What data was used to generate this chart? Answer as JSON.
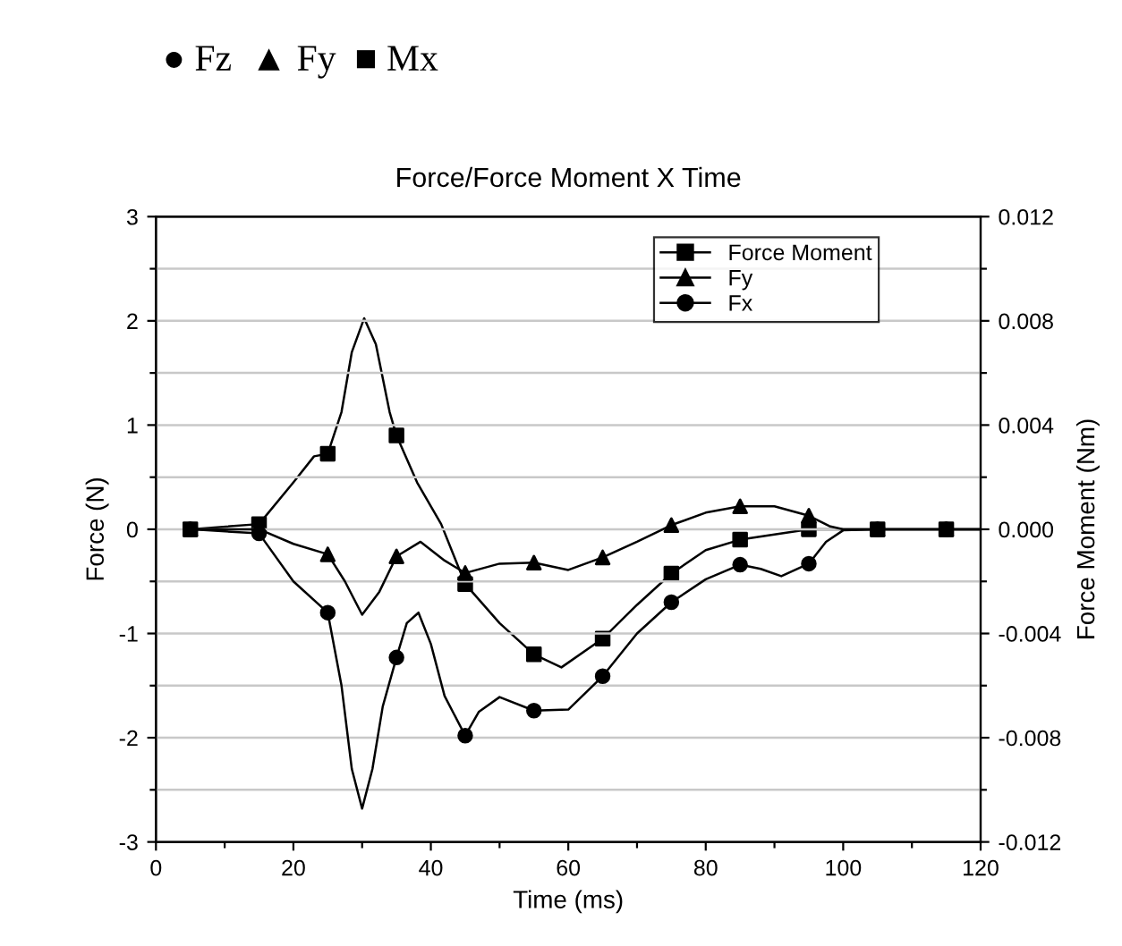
{
  "chart_data": {
    "type": "line",
    "title": "Force/Force Moment X Time",
    "xlabel": "Time (ms)",
    "ylabel": "Force (N)",
    "y2label": "Force Moment (Nm)",
    "annotations": [
      "● Fz  ▲ Fy  ■ Mx"
    ],
    "xlim": [
      0,
      120
    ],
    "xticks": [
      0,
      {
        "value": 10,
        "label": null
      },
      20,
      {
        "value": 30,
        "label": null
      },
      40,
      {
        "value": 50,
        "label": null
      },
      60,
      {
        "value": 70,
        "label": null
      },
      80,
      {
        "value": 90,
        "label": null
      },
      100,
      {
        "value": 110,
        "label": null
      },
      120
    ],
    "ylim": [
      -3,
      3
    ],
    "yticks": [
      -3,
      {
        "value": -2.5,
        "label": null
      },
      -2,
      {
        "value": -1.5,
        "label": null
      },
      -1,
      {
        "value": -0.5,
        "label": null
      },
      0,
      {
        "value": 0.5,
        "label": null
      },
      1,
      {
        "value": 1.5,
        "label": null
      },
      2,
      {
        "value": 2.5,
        "label": null
      },
      3
    ],
    "y2lim": [
      -0.012,
      0.012
    ],
    "y2ticks": [
      {
        "value": -0.012,
        "label": "-0.012"
      },
      {
        "value": -0.01,
        "label": null
      },
      {
        "value": -0.008,
        "label": "-0.008"
      },
      {
        "value": -0.006,
        "label": null
      },
      {
        "value": -0.004,
        "label": "-0.004"
      },
      {
        "value": -0.002,
        "label": null
      },
      {
        "value": 0,
        "label": "0.000"
      },
      {
        "value": 0.002,
        "label": null
      },
      {
        "value": 0.004,
        "label": "0.004"
      },
      {
        "value": 0.006,
        "label": null
      },
      {
        "value": 0.008,
        "label": "0.008"
      },
      {
        "value": 0.01,
        "label": null
      },
      {
        "value": 0.012,
        "label": "0.012"
      }
    ],
    "grid": "y",
    "legend": "top right",
    "series": [
      {
        "axis": "y2",
        "color": "#000000",
        "marker": "none",
        "x": [
          5,
          15,
          20,
          23,
          25,
          27,
          28.5,
          30.3,
          32,
          34,
          35,
          38,
          41.5,
          45,
          50,
          55,
          59,
          65,
          70,
          75,
          80,
          85,
          95,
          105,
          115,
          120
        ],
        "values": [
          0,
          0.0002,
          0.0018,
          0.0028,
          0.0029,
          0.0045,
          0.0068,
          0.0081,
          0.0071,
          0.0045,
          0.0036,
          0.0018,
          0.0002,
          -0.0021,
          -0.0036,
          -0.0048,
          -0.0053,
          -0.0042,
          -0.0029,
          -0.0017,
          -0.0008,
          -0.0004,
          0,
          0,
          0,
          0
        ]
      },
      {
        "type": "scatter",
        "axis": "y2",
        "name": "Force Moment",
        "color": "#000000",
        "marker": "square",
        "x": [
          5,
          15,
          25,
          35,
          45,
          55,
          65,
          75,
          85,
          95,
          105,
          115
        ],
        "values": [
          0,
          0.0002,
          0.0029,
          0.0036,
          -0.0021,
          -0.0048,
          -0.0042,
          -0.0017,
          -0.0004,
          0,
          0,
          0
        ]
      },
      {
        "color": "#000000",
        "marker": "none",
        "x": [
          5,
          15,
          20,
          25,
          27.5,
          30,
          32.5,
          35,
          38.5,
          42,
          45,
          50,
          55,
          60,
          65,
          70,
          75,
          80,
          85,
          90,
          95,
          98,
          100,
          105,
          115,
          120
        ],
        "values": [
          0,
          0,
          -0.14,
          -0.24,
          -0.5,
          -0.82,
          -0.6,
          -0.26,
          -0.12,
          -0.3,
          -0.42,
          -0.33,
          -0.32,
          -0.39,
          -0.27,
          -0.12,
          0.04,
          0.16,
          0.22,
          0.22,
          0.13,
          0.03,
          0,
          0,
          0,
          0
        ]
      },
      {
        "type": "scatter",
        "name": "Fy",
        "color": "#000000",
        "marker": "triangle",
        "x": [
          5,
          15,
          25,
          35,
          45,
          55,
          65,
          75,
          85,
          95,
          105,
          115
        ],
        "values": [
          0,
          null,
          -0.24,
          -0.26,
          -0.42,
          -0.32,
          -0.27,
          0.04,
          0.22,
          0.13,
          0,
          0
        ]
      },
      {
        "color": "#000000",
        "marker": "none",
        "x": [
          5,
          15,
          20,
          25,
          27,
          28.5,
          30,
          31.5,
          33,
          35,
          36.5,
          38.2,
          40,
          42,
          45,
          47,
          50,
          55,
          60,
          65,
          70,
          75,
          80,
          85,
          88,
          91,
          95,
          97.5,
          100,
          105,
          115,
          120
        ],
        "values": [
          0,
          -0.04,
          -0.5,
          -0.8,
          -1.5,
          -2.3,
          -2.68,
          -2.3,
          -1.7,
          -1.23,
          -0.9,
          -0.8,
          -1.1,
          -1.6,
          -1.98,
          -1.75,
          -1.61,
          -1.74,
          -1.73,
          -1.41,
          -1.0,
          -0.7,
          -0.48,
          -0.34,
          -0.38,
          -0.45,
          -0.33,
          -0.12,
          -0.01,
          0,
          0,
          0
        ]
      },
      {
        "type": "scatter",
        "name": "Fx",
        "color": "#000000",
        "marker": "circle",
        "x": [
          5,
          15,
          25,
          35,
          45,
          55,
          65,
          75,
          85,
          95,
          105,
          115
        ],
        "values": [
          0,
          -0.04,
          -0.8,
          -1.23,
          -1.98,
          -1.74,
          -1.41,
          -0.7,
          -0.34,
          -0.33,
          0,
          0
        ]
      }
    ]
  }
}
